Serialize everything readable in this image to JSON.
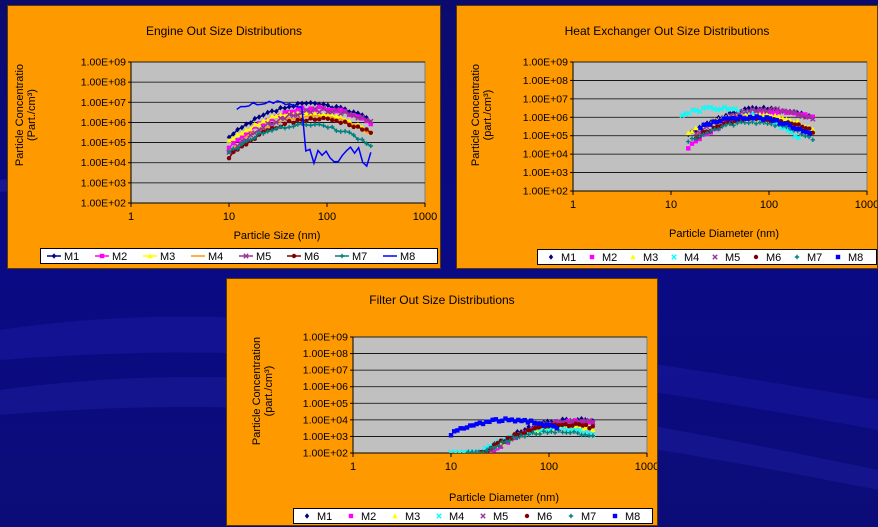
{
  "chart_data": [
    {
      "type": "line",
      "title": "Engine Out Size Distributions",
      "xlabel": "Particle Size (nm)",
      "ylabel_lines": [
        "Particle Concentratio",
        "(Part./cm³)"
      ],
      "xscale": "log",
      "yscale": "log",
      "xlim": [
        1,
        1000
      ],
      "ylim": [
        100,
        1000000000
      ],
      "xticks": [
        "1",
        "10",
        "100",
        "1000"
      ],
      "yticks": [
        "1.00E+02",
        "1.00E+03",
        "1.00E+04",
        "1.00E+05",
        "1.00E+06",
        "1.00E+07",
        "1.00E+08",
        "1.00E+09"
      ],
      "grid": true,
      "legend": "bottom",
      "series": [
        {
          "name": "M1",
          "color": "#000080",
          "marker": "diamond",
          "peak_x": 70,
          "peak_y": 8000000,
          "x_range": [
            10,
            280
          ]
        },
        {
          "name": "M2",
          "color": "#ff00ff",
          "marker": "square",
          "peak_x": 80,
          "peak_y": 5000000,
          "x_range": [
            10,
            280
          ]
        },
        {
          "name": "M3",
          "color": "#ffff00",
          "marker": "triangle",
          "peak_x": 60,
          "peak_y": 3000000,
          "x_range": [
            10,
            280
          ]
        },
        {
          "name": "M4",
          "color": "#ff9900",
          "marker": "none",
          "peak_x": 70,
          "peak_y": 2000000,
          "x_range": [
            10,
            280
          ]
        },
        {
          "name": "M5",
          "color": "#993399",
          "marker": "x",
          "peak_x": 90,
          "peak_y": 4000000,
          "x_range": [
            10,
            280
          ]
        },
        {
          "name": "M6",
          "color": "#800000",
          "marker": "circle",
          "peak_x": 80,
          "peak_y": 1500000,
          "x_range": [
            10,
            280
          ]
        },
        {
          "name": "M7",
          "color": "#008080",
          "marker": "plus",
          "peak_x": 60,
          "peak_y": 800000,
          "x_range": [
            10,
            280
          ]
        },
        {
          "name": "M8",
          "color": "#0000ff",
          "marker": "none",
          "peak_x": 28,
          "peak_y": 10000000,
          "x_range": [
            12,
            280
          ]
        }
      ]
    },
    {
      "type": "scatter",
      "title": "Heat Exchanger Out Size Distributions",
      "xlabel": "Particle Diameter (nm)",
      "ylabel_lines": [
        "Particle Concentratio",
        "(part./cm³)"
      ],
      "xscale": "log",
      "yscale": "log",
      "xlim": [
        1,
        1000
      ],
      "ylim": [
        100,
        1000000000
      ],
      "xticks": [
        "1",
        "10",
        "100",
        "1000"
      ],
      "yticks": [
        "1.00E+02",
        "1.00E+03",
        "1.00E+04",
        "1.00E+05",
        "1.00E+06",
        "1.00E+07",
        "1.00E+08",
        "1.00E+09"
      ],
      "grid": true,
      "legend": "bottom",
      "series": [
        {
          "name": "M1",
          "color": "#000080",
          "peak_x": 90,
          "peak_y": 3000000,
          "x_range": [
            15,
            280
          ]
        },
        {
          "name": "M2",
          "color": "#ff00ff",
          "peak_x": 120,
          "peak_y": 2000000,
          "x_range": [
            15,
            280
          ]
        },
        {
          "name": "M3",
          "color": "#ffff00",
          "peak_x": 70,
          "peak_y": 1500000,
          "x_range": [
            15,
            280
          ]
        },
        {
          "name": "M4",
          "color": "#00ffff",
          "peak_x": 30,
          "peak_y": 3000000,
          "x_range": [
            13,
            200
          ]
        },
        {
          "name": "M5",
          "color": "#993399",
          "peak_x": 100,
          "peak_y": 2500000,
          "x_range": [
            18,
            280
          ]
        },
        {
          "name": "M6",
          "color": "#800000",
          "peak_x": 80,
          "peak_y": 800000,
          "x_range": [
            18,
            280
          ]
        },
        {
          "name": "M7",
          "color": "#008080",
          "peak_x": 70,
          "peak_y": 500000,
          "x_range": [
            15,
            280
          ]
        },
        {
          "name": "M8",
          "color": "#0000ff",
          "peak_x": 60,
          "peak_y": 1000000,
          "x_range": [
            20,
            260
          ]
        }
      ]
    },
    {
      "type": "scatter",
      "title": "Filter Out Size Distributions",
      "xlabel": "Particle Diameter (nm)",
      "ylabel_lines": [
        "Particle Concentration",
        "(part./cm³)"
      ],
      "xscale": "log",
      "yscale": "log",
      "xlim": [
        1,
        1000
      ],
      "ylim": [
        100,
        1000000000
      ],
      "xticks": [
        "1",
        "10",
        "100",
        "1000"
      ],
      "yticks": [
        "1.00E+02",
        "1.00E+03",
        "1.00E+04",
        "1.00E+05",
        "1.00E+06",
        "1.00E+07",
        "1.00E+08",
        "1.00E+09"
      ],
      "grid": true,
      "legend": "bottom",
      "series": [
        {
          "name": "M1",
          "color": "#000080",
          "peak_x": 180,
          "peak_y": 10000,
          "x_range": [
            15,
            280
          ]
        },
        {
          "name": "M2",
          "color": "#ff00ff",
          "peak_x": 200,
          "peak_y": 8000,
          "x_range": [
            18,
            280
          ]
        },
        {
          "name": "M3",
          "color": "#ffff00",
          "peak_x": 150,
          "peak_y": 4000,
          "x_range": [
            18,
            280
          ]
        },
        {
          "name": "M4",
          "color": "#00ffff",
          "peak_x": 120,
          "peak_y": 3000,
          "x_range": [
            10,
            280
          ]
        },
        {
          "name": "M5",
          "color": "#993399",
          "peak_x": 200,
          "peak_y": 9000,
          "x_range": [
            20,
            280
          ]
        },
        {
          "name": "M6",
          "color": "#800000",
          "peak_x": 150,
          "peak_y": 5000,
          "x_range": [
            20,
            280
          ]
        },
        {
          "name": "M7",
          "color": "#008080",
          "peak_x": 120,
          "peak_y": 2000,
          "x_range": [
            15,
            280
          ]
        },
        {
          "name": "M8",
          "color": "#0000ff",
          "peak_x": 40,
          "peak_y": 10000,
          "x_range": [
            10,
            120
          ]
        }
      ]
    }
  ]
}
